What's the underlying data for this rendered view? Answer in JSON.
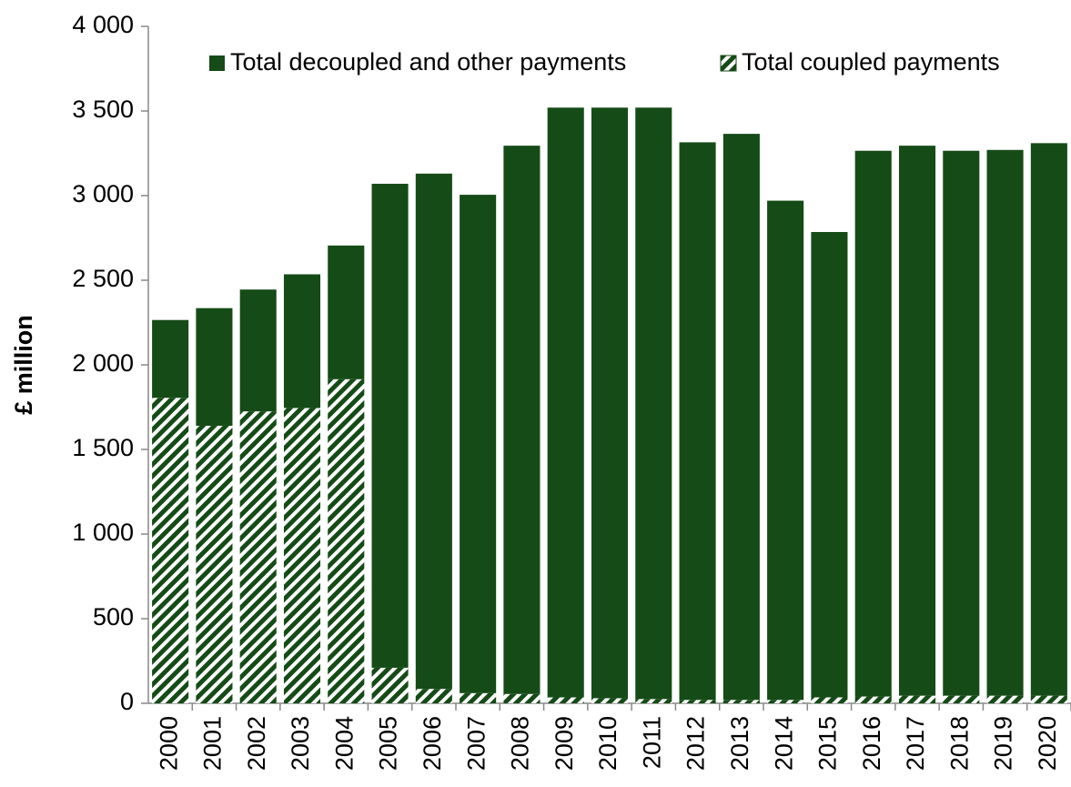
{
  "chart_data": {
    "type": "stacked_bar",
    "ylabel": "£ million",
    "categories": [
      "2000",
      "2001",
      "2002",
      "2003",
      "2004",
      "2005",
      "2006",
      "2007",
      "2008",
      "2009",
      "2010",
      "2011",
      "2012",
      "2013",
      "2014",
      "2015",
      "2016",
      "2017",
      "2018",
      "2019",
      "2020"
    ],
    "series": [
      {
        "name": "Total decoupled and other payments",
        "color": "#154b17",
        "values": [
          460,
          695,
          720,
          790,
          790,
          2860,
          3045,
          2945,
          3240,
          3485,
          3490,
          3495,
          3295,
          3345,
          2950,
          2750,
          3225,
          3250,
          3220,
          3225,
          3265
        ]
      },
      {
        "name": "Total coupled payments",
        "color": "#154b17",
        "pattern": "hatch",
        "values": [
          1805,
          1640,
          1725,
          1745,
          1915,
          210,
          85,
          60,
          55,
          35,
          30,
          25,
          20,
          20,
          20,
          35,
          40,
          45,
          45,
          45,
          45
        ]
      }
    ],
    "stack_order": "bottom_last_series",
    "ylim": [
      0,
      4000
    ],
    "yticks": [
      0,
      500,
      {
        "value": 1000,
        "label": "1 000"
      },
      {
        "value": 1500,
        "label": "1 500"
      },
      {
        "value": 2000,
        "label": "2 000"
      },
      {
        "value": 2500,
        "label": "2 500"
      },
      {
        "value": 3000,
        "label": "3 000"
      },
      {
        "value": 3500,
        "label": "3 500"
      },
      {
        "value": 4000,
        "label": "4 000"
      }
    ],
    "legend": "top"
  }
}
